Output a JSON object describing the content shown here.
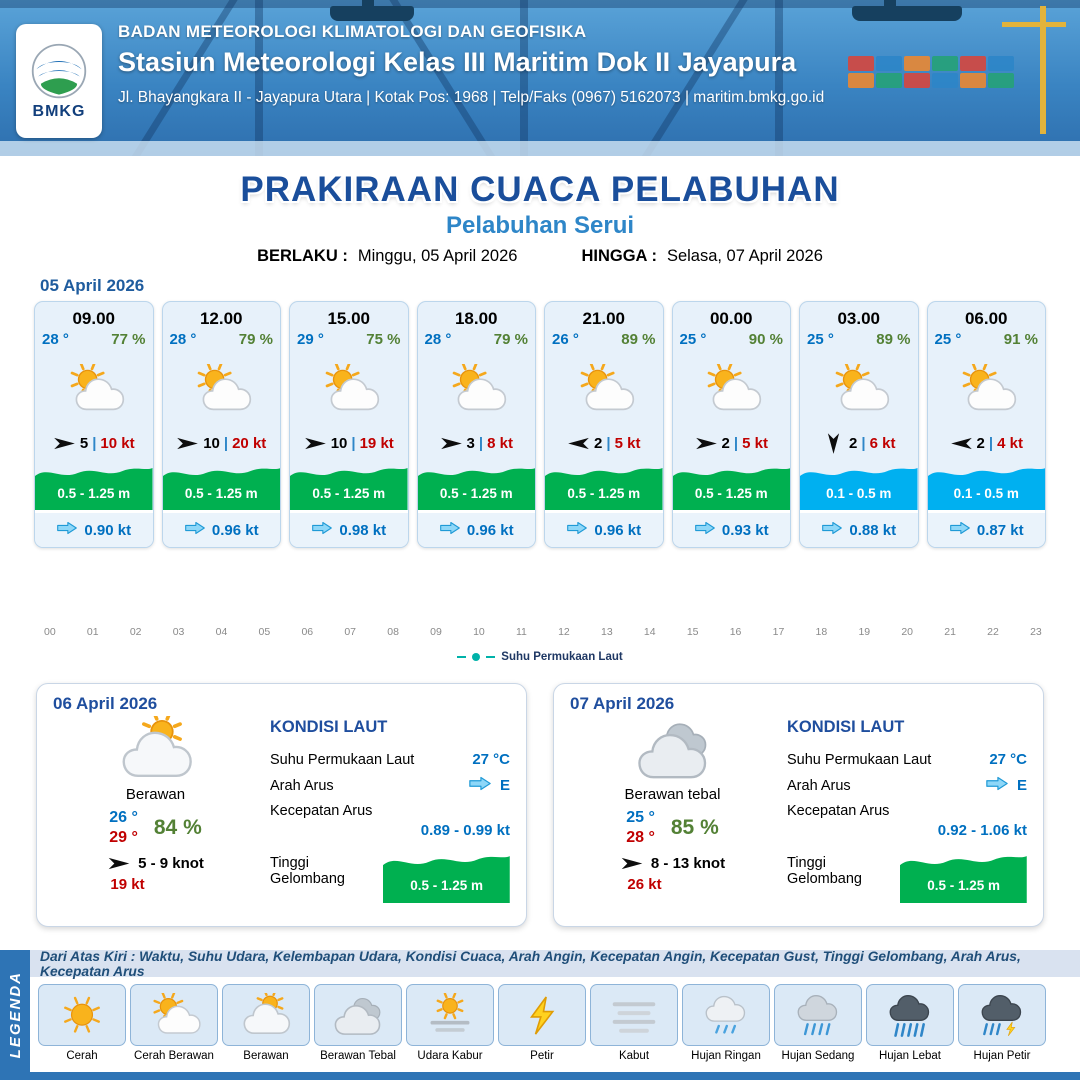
{
  "header": {
    "agency": "BADAN METEOROLOGI KLIMATOLOGI DAN GEOFISIKA",
    "station": "Stasiun Meteorologi Kelas III Maritim Dok II Jayapura",
    "address": "Jl. Bhayangkara II - Jayapura Utara | Kotak Pos: 1968 | Telp/Faks (0967) 5162073 | maritim.bmkg.go.id",
    "logo_label": "BMKG"
  },
  "title": {
    "main": "PRAKIRAAN CUACA PELABUHAN",
    "port": "Pelabuhan Serui",
    "valid_label": "BERLAKU :",
    "valid_value": "Minggu, 05 April 2026",
    "until_label": "HINGGA :",
    "until_value": "Selasa, 07 April 2026"
  },
  "day1": {
    "date": "05 April 2026",
    "cards": [
      {
        "time": "09.00",
        "temp": "28 °",
        "rh": "77 %",
        "icon": "cerah-berawan",
        "wind_rot": 0,
        "wind_speed": "5",
        "gust": "10 kt",
        "wave": "0.5 - 1.25 m",
        "wave_color": "#00b050",
        "current": "0.90 kt"
      },
      {
        "time": "12.00",
        "temp": "28 °",
        "rh": "79 %",
        "icon": "cerah-berawan",
        "wind_rot": 0,
        "wind_speed": "10",
        "gust": "20 kt",
        "wave": "0.5 - 1.25 m",
        "wave_color": "#00b050",
        "current": "0.96 kt"
      },
      {
        "time": "15.00",
        "temp": "29 °",
        "rh": "75 %",
        "icon": "cerah-berawan",
        "wind_rot": 0,
        "wind_speed": "10",
        "gust": "19 kt",
        "wave": "0.5 - 1.25 m",
        "wave_color": "#00b050",
        "current": "0.98 kt"
      },
      {
        "time": "18.00",
        "temp": "28 °",
        "rh": "79 %",
        "icon": "cerah-berawan",
        "wind_rot": 0,
        "wind_speed": "3",
        "gust": "8 kt",
        "wave": "0.5 - 1.25 m",
        "wave_color": "#00b050",
        "current": "0.96 kt"
      },
      {
        "time": "21.00",
        "temp": "26 °",
        "rh": "89 %",
        "icon": "cerah-berawan",
        "wind_rot": 180,
        "wind_speed": "2",
        "gust": "5 kt",
        "wave": "0.5 - 1.25 m",
        "wave_color": "#00b050",
        "current": "0.96 kt"
      },
      {
        "time": "00.00",
        "temp": "25 °",
        "rh": "90 %",
        "icon": "cerah-berawan",
        "wind_rot": 0,
        "wind_speed": "2",
        "gust": "5 kt",
        "wave": "0.5 - 1.25 m",
        "wave_color": "#00b050",
        "current": "0.93 kt"
      },
      {
        "time": "03.00",
        "temp": "25 °",
        "rh": "89 %",
        "icon": "cerah-berawan",
        "wind_rot": 90,
        "wind_speed": "2",
        "gust": "6 kt",
        "wave": "0.1 - 0.5 m",
        "wave_color": "#00b0f0",
        "current": "0.88 kt"
      },
      {
        "time": "06.00",
        "temp": "25 °",
        "rh": "91 %",
        "icon": "cerah-berawan",
        "wind_rot": 180,
        "wind_speed": "2",
        "gust": "4 kt",
        "wave": "0.1 - 0.5 m",
        "wave_color": "#00b0f0",
        "current": "0.87 kt"
      }
    ]
  },
  "chart": {
    "hours": [
      "00",
      "01",
      "02",
      "03",
      "04",
      "05",
      "06",
      "07",
      "08",
      "09",
      "10",
      "11",
      "12",
      "13",
      "14",
      "15",
      "16",
      "17",
      "18",
      "19",
      "20",
      "21",
      "22",
      "23"
    ],
    "legend_label": "Suhu Permukaan Laut"
  },
  "sea_labels": {
    "title": "KONDISI LAUT",
    "sst": "Suhu Permukaan Laut",
    "dir": "Arah Arus",
    "speed": "Kecepatan Arus",
    "wave": "Tinggi Gelombang"
  },
  "day_cards": [
    {
      "date": "06 April 2026",
      "icon": "berawan",
      "condition": "Berawan",
      "temp_min": "26 °",
      "temp_max": "29 °",
      "rh": "84 %",
      "wind": "5 - 9 knot",
      "gust": "19 kt",
      "sst": "27 °C",
      "current_dir": "E",
      "current_speed": "0.89 - 0.99 kt",
      "wave": "0.5 - 1.25 m"
    },
    {
      "date": "07 April 2026",
      "icon": "berawan-tebal",
      "condition": "Berawan tebal",
      "temp_min": "25 °",
      "temp_max": "28 °",
      "rh": "85 %",
      "wind": "8 - 13 knot",
      "gust": "26 kt",
      "sst": "27 °C",
      "current_dir": "E",
      "current_speed": "0.92 - 1.06 kt",
      "wave": "0.5 - 1.25 m"
    }
  ],
  "legend": {
    "title": "LEGENDA",
    "description": "Dari Atas Kiri : Waktu, Suhu Udara, Kelembapan Udara, Kondisi Cuaca, Arah Angin, Kecepatan Angin, Kecepatan Gust, Tinggi Gelombang, Arah Arus, Kecepatan Arus",
    "items": [
      {
        "icon": "cerah",
        "label": "Cerah"
      },
      {
        "icon": "cerah-berawan",
        "label": "Cerah Berawan"
      },
      {
        "icon": "berawan",
        "label": "Berawan"
      },
      {
        "icon": "berawan-tebal",
        "label": "Berawan Tebal"
      },
      {
        "icon": "udara-kabur",
        "label": "Udara Kabur"
      },
      {
        "icon": "petir",
        "label": "Petir"
      },
      {
        "icon": "kabut",
        "label": "Kabut"
      },
      {
        "icon": "hujan-ringan",
        "label": "Hujan Ringan"
      },
      {
        "icon": "hujan-sedang",
        "label": "Hujan Sedang"
      },
      {
        "icon": "hujan-lebat",
        "label": "Hujan Lebat"
      },
      {
        "icon": "hujan-petir",
        "label": "Hujan Petir"
      }
    ]
  }
}
